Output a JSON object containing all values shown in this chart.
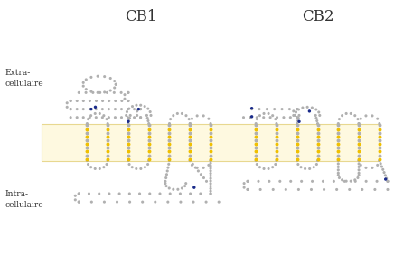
{
  "title_cb1": "CB1",
  "title_cb2": "CB2",
  "label_extra": "Extra-\ncellulaire",
  "label_intra": "Intra-\ncellulaire",
  "bg_color": "#ffffff",
  "membrane_color": "#fef9e0",
  "membrane_edge_color": "#e8d890",
  "bead_gray": "#b0b0b0",
  "bead_yellow": "#f0c000",
  "bead_blue": "#1a2b8a",
  "figsize": [
    4.57,
    3.05
  ],
  "dpi": 100
}
